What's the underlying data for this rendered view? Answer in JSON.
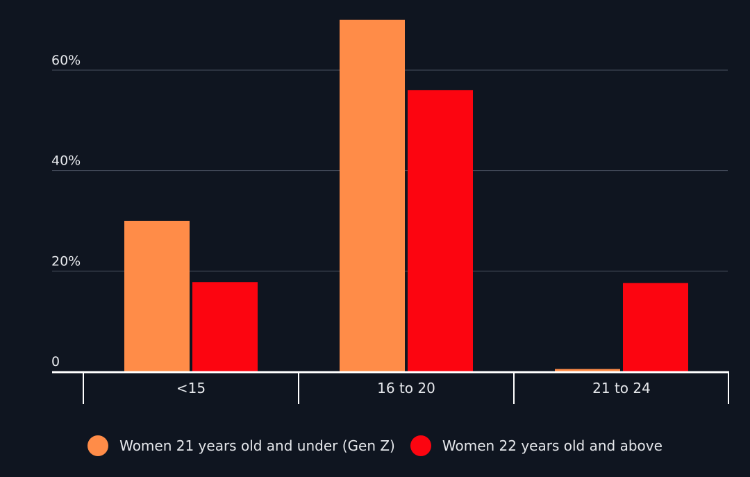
{
  "chart_data": {
    "type": "bar",
    "title": "",
    "xlabel": "",
    "ylabel": "",
    "categories": [
      "<15",
      "16 to 20",
      "21 to 24"
    ],
    "series": [
      {
        "name": "Women 21 years old and under (Gen Z)",
        "color": "#ff8c48",
        "values": [
          30,
          70,
          0.5
        ]
      },
      {
        "name": "Women 22 years old and above",
        "color": "#fc0510",
        "values": [
          17.8,
          56,
          17.6
        ]
      }
    ],
    "ylim": [
      0,
      70
    ],
    "yticks": [
      {
        "value": 0,
        "label": "0"
      },
      {
        "value": 20,
        "label": "20%"
      },
      {
        "value": 40,
        "label": "40%"
      },
      {
        "value": 60,
        "label": "60%"
      }
    ],
    "grid": true,
    "legend": "bottom-center"
  }
}
